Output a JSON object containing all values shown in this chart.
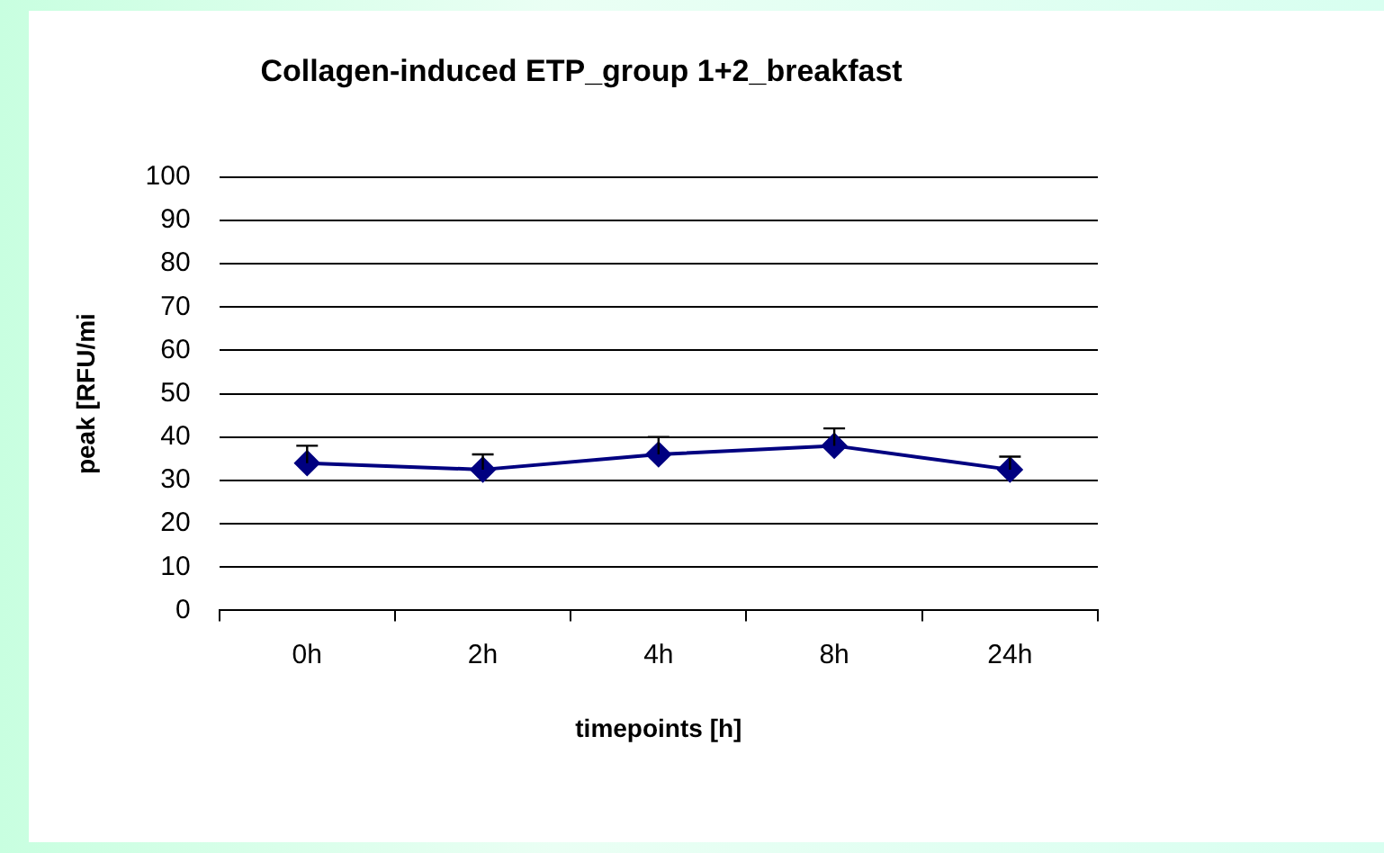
{
  "chart_data": {
    "type": "line",
    "title": "Collagen-induced ETP_group 1+2_breakfast",
    "xlabel": "timepoints [h]",
    "ylabel": "peak [RFU/mi",
    "categories": [
      "0h",
      "2h",
      "4h",
      "8h",
      "24h"
    ],
    "series": [
      {
        "color": "#000080",
        "values": [
          34,
          32.5,
          36,
          38,
          32.5
        ],
        "errors": [
          [
            34,
            38
          ],
          [
            32.5,
            36
          ],
          [
            36,
            40
          ],
          [
            38,
            42
          ],
          [
            32.5,
            35.5
          ]
        ]
      }
    ],
    "ylim": [
      0,
      100
    ],
    "yticks": [
      0,
      10,
      20,
      30,
      40,
      50,
      60,
      70,
      80,
      90,
      100
    ],
    "grid": "y",
    "legend": false,
    "marker": "diamond",
    "line_style": "solid"
  }
}
